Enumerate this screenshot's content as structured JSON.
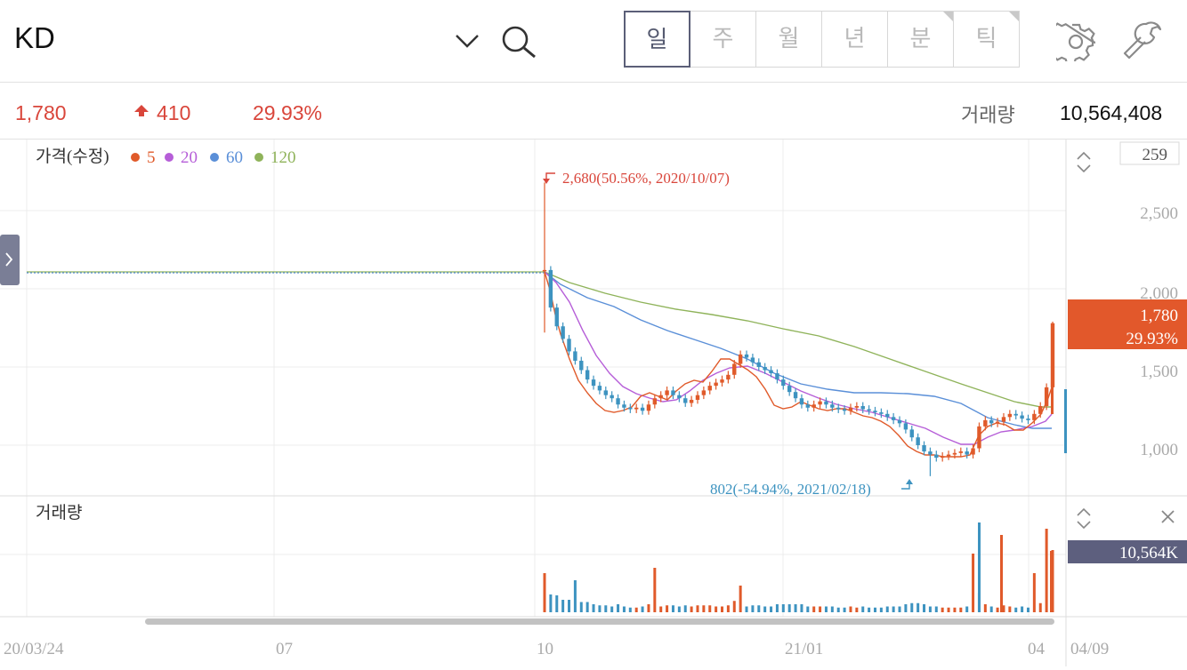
{
  "header": {
    "symbol": "KD",
    "tabs": [
      "일",
      "주",
      "월",
      "년",
      "분",
      "틱"
    ],
    "active_tab": "일"
  },
  "quote": {
    "price": "1,780",
    "change": "410",
    "change_pct": "29.93%",
    "volume_label": "거래량",
    "volume": "10,564,408"
  },
  "price_panel": {
    "title": "가격(수정)",
    "ma_legend": [
      {
        "label": "5",
        "color": "#e05a2a"
      },
      {
        "label": "20",
        "color": "#b65ed8"
      },
      {
        "label": "60",
        "color": "#5a8fd8"
      },
      {
        "label": "120",
        "color": "#8fb35a"
      }
    ],
    "top_value": "259",
    "current_price_box": "1,780",
    "current_pct_box": "29.93%",
    "max_annotation": "2,680(50.56%, 2020/10/07)",
    "min_annotation": "802(-54.94%, 2021/02/18)"
  },
  "volume_panel": {
    "title": "거래량",
    "current_box": "10,564K"
  },
  "colors": {
    "up": "#e05a2a",
    "down": "#3d93c0",
    "accent_box": "#e2582b",
    "volume_box": "#5d5f7e"
  },
  "chart_data": {
    "type": "candlestick",
    "y_axis": {
      "ticks": [
        "2,500",
        "2,000",
        "1,500",
        "1,000"
      ],
      "values": [
        2500,
        2000,
        1500,
        1000
      ],
      "range": [
        800,
        2800
      ]
    },
    "x_axis": {
      "ticks": [
        "20/03/24",
        "07",
        "10",
        "21/01",
        "04",
        "04/09"
      ]
    },
    "ma_series": [
      "5",
      "20",
      "60",
      "120"
    ],
    "flat_price_before_listing": 2120,
    "last": {
      "price": 1780,
      "change": 410,
      "change_pct": 29.93,
      "volume": 10564408
    },
    "high": {
      "value": 2680,
      "pct": 50.56,
      "date": "2020/10/07"
    },
    "low": {
      "value": 802,
      "pct": -54.94,
      "date": "2021/02/18"
    },
    "closes_approx": [
      2120,
      1880,
      1760,
      1680,
      1600,
      1540,
      1480,
      1420,
      1380,
      1350,
      1320,
      1300,
      1260,
      1240,
      1230,
      1240,
      1220,
      1260,
      1300,
      1320,
      1350,
      1320,
      1300,
      1270,
      1290,
      1320,
      1350,
      1380,
      1400,
      1420,
      1450,
      1520,
      1580,
      1560,
      1530,
      1500,
      1480,
      1460,
      1420,
      1380,
      1340,
      1300,
      1260,
      1240,
      1260,
      1280,
      1260,
      1240,
      1230,
      1220,
      1240,
      1250,
      1230,
      1220,
      1210,
      1200,
      1180,
      1160,
      1140,
      1100,
      1050,
      1000,
      960,
      940,
      920,
      930,
      940,
      950,
      960,
      940,
      980,
      1120,
      1160,
      1140,
      1150,
      1180,
      1200,
      1190,
      1170,
      1160,
      1200,
      1250,
      1370,
      1780
    ]
  }
}
